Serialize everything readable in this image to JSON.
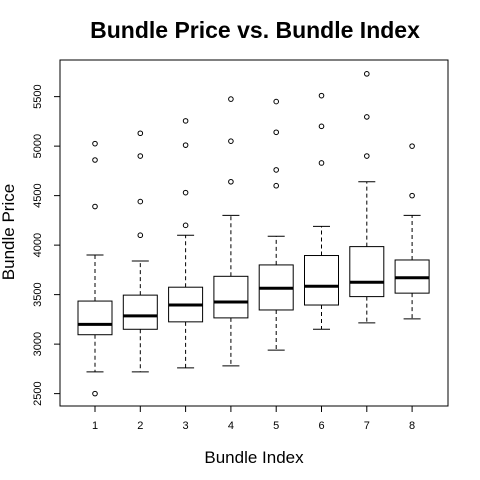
{
  "chart_data": {
    "type": "box",
    "title": "Bundle Price vs. Bundle Index",
    "xlabel": "Bundle Index",
    "ylabel": "Bundle Price",
    "categories": [
      "1",
      "2",
      "3",
      "4",
      "5",
      "6",
      "7",
      "8"
    ],
    "ylim": [
      2375,
      5870
    ],
    "yticks": [
      2500,
      3000,
      3500,
      4000,
      4500,
      5000,
      5500
    ],
    "grid": false,
    "boxes": [
      {
        "category": "1",
        "whisker_low": 2720,
        "q1": 3095,
        "median": 3200,
        "q3": 3435,
        "whisker_high": 3900,
        "outliers": [
          2500,
          4390,
          4860,
          5025
        ]
      },
      {
        "category": "2",
        "whisker_low": 2720,
        "q1": 3150,
        "median": 3285,
        "q3": 3495,
        "whisker_high": 3840,
        "outliers": [
          4100,
          4440,
          4900,
          5130
        ]
      },
      {
        "category": "3",
        "whisker_low": 2760,
        "q1": 3225,
        "median": 3395,
        "q3": 3575,
        "whisker_high": 4100,
        "outliers": [
          4200,
          4530,
          5010,
          5255
        ]
      },
      {
        "category": "4",
        "whisker_low": 2780,
        "q1": 3265,
        "median": 3425,
        "q3": 3685,
        "whisker_high": 4300,
        "outliers": [
          4640,
          5050,
          5475
        ]
      },
      {
        "category": "5",
        "whisker_low": 2940,
        "q1": 3345,
        "median": 3565,
        "q3": 3800,
        "whisker_high": 4090,
        "outliers": [
          4600,
          4760,
          5140,
          5450
        ]
      },
      {
        "category": "6",
        "whisker_low": 3150,
        "q1": 3395,
        "median": 3585,
        "q3": 3895,
        "whisker_high": 4190,
        "outliers": [
          4830,
          5200,
          5510
        ]
      },
      {
        "category": "7",
        "whisker_low": 3215,
        "q1": 3480,
        "median": 3625,
        "q3": 3985,
        "whisker_high": 4640,
        "outliers": [
          4900,
          5295,
          5730
        ]
      },
      {
        "category": "8",
        "whisker_low": 3255,
        "q1": 3515,
        "median": 3670,
        "q3": 3850,
        "whisker_high": 4300,
        "outliers": [
          4500,
          5000
        ]
      }
    ]
  }
}
